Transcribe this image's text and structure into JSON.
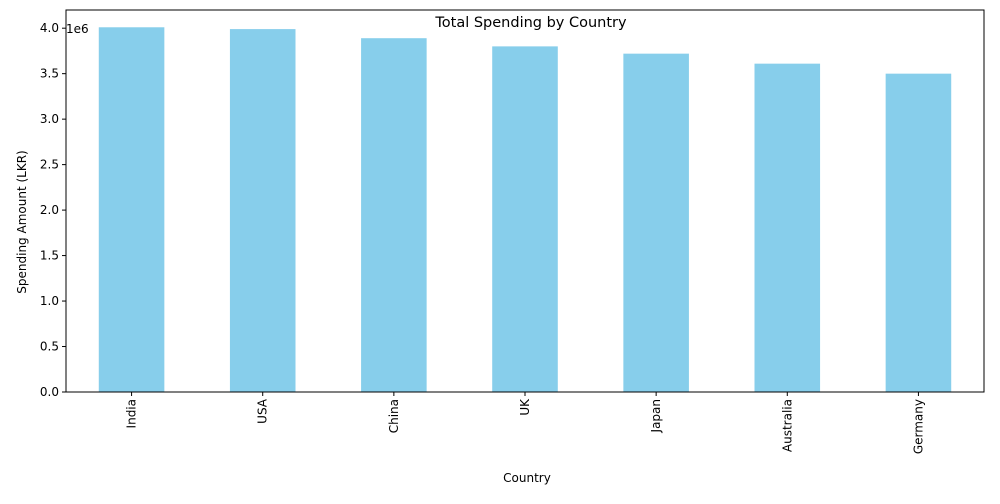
{
  "chart_data": {
    "type": "bar",
    "title": "Total Spending by Country",
    "xlabel": "Country",
    "ylabel": "Spending Amount (LKR)",
    "y_offset_label": "1e6",
    "y_scale_factor": 1000000,
    "categories": [
      "India",
      "USA",
      "China",
      "UK",
      "Japan",
      "Australia",
      "Germany"
    ],
    "values": [
      4010000,
      3990000,
      3890000,
      3800000,
      3720000,
      3610000,
      3500000
    ],
    "ylim": [
      0,
      4200000
    ],
    "yticks": [
      0,
      500000,
      1000000,
      1500000,
      2000000,
      2500000,
      3000000,
      3500000,
      4000000
    ],
    "ytick_labels": [
      "0.0",
      "0.5",
      "1.0",
      "1.5",
      "2.0",
      "2.5",
      "3.0",
      "3.5",
      "4.0"
    ],
    "bar_color": "#87ceeb",
    "grid": false,
    "legend": "none"
  }
}
